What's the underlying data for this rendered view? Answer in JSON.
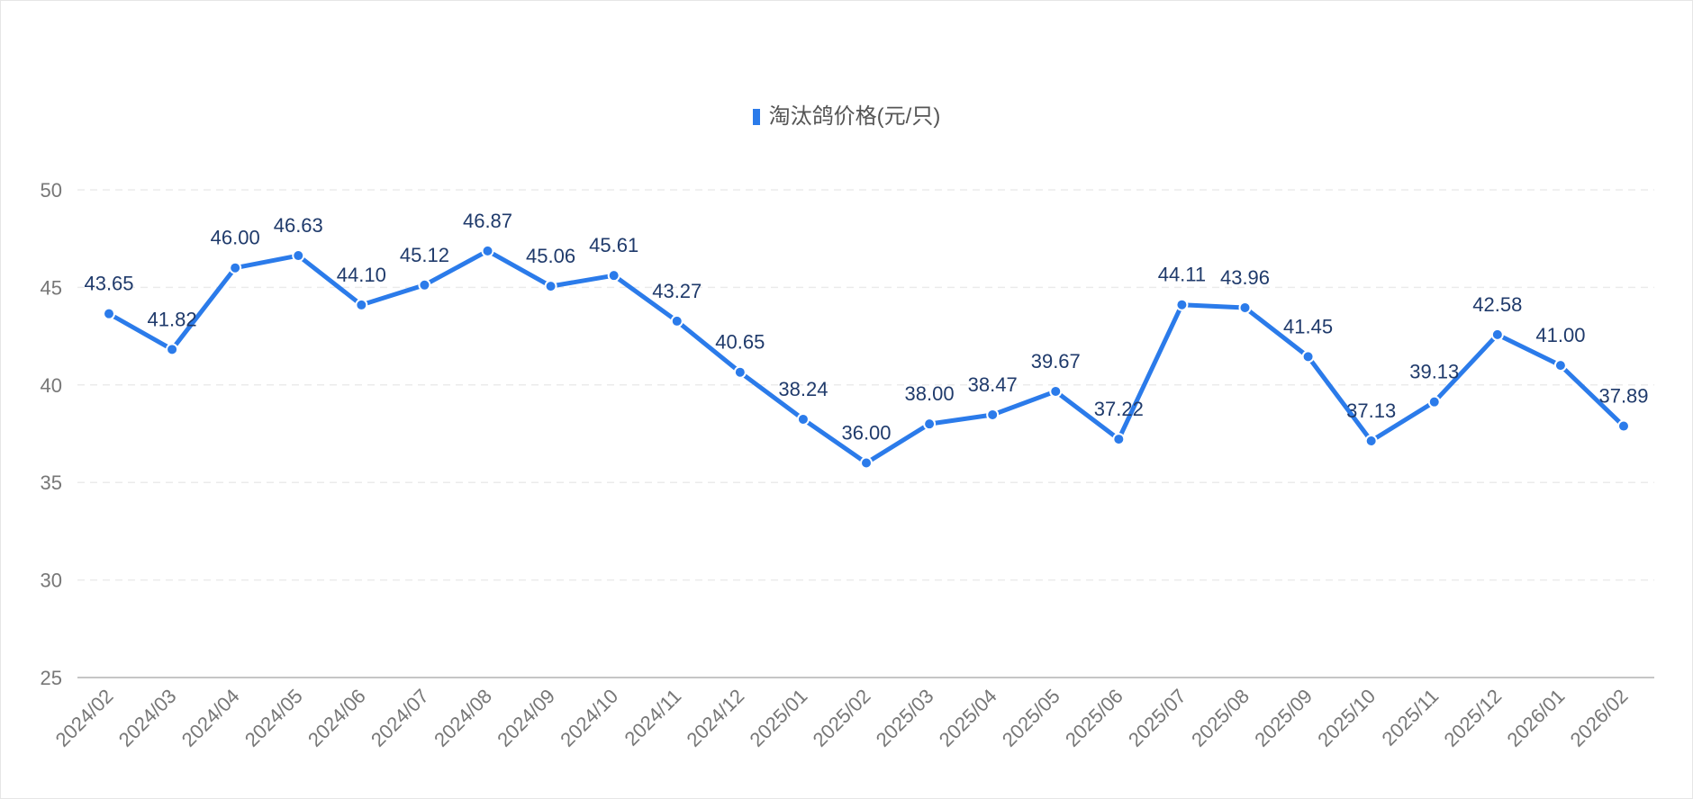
{
  "chart_data": {
    "type": "line",
    "title": "",
    "xlabel": "",
    "ylabel": "",
    "ylim": [
      25,
      50
    ],
    "yticks": [
      25,
      30,
      35,
      40,
      45,
      50
    ],
    "grid": true,
    "legend_position": "top-center",
    "categories": [
      "2024/02",
      "2024/03",
      "2024/04",
      "2024/05",
      "2024/06",
      "2024/07",
      "2024/08",
      "2024/09",
      "2024/10",
      "2024/11",
      "2024/12",
      "2025/01",
      "2025/02",
      "2025/03",
      "2025/04",
      "2025/05",
      "2025/06",
      "2025/07",
      "2025/08",
      "2025/09",
      "2025/10",
      "2025/11",
      "2025/12",
      "2026/01",
      "2026/02"
    ],
    "series": [
      {
        "name": "淘汰鸽价格(元/只)",
        "color": "#2b7bea",
        "values": [
          43.65,
          41.82,
          46.0,
          46.63,
          44.1,
          45.12,
          46.87,
          45.06,
          45.61,
          43.27,
          40.65,
          38.24,
          36.0,
          38.0,
          38.47,
          39.67,
          37.22,
          44.11,
          43.96,
          41.45,
          37.13,
          39.13,
          42.58,
          41.0,
          37.89
        ],
        "labels": [
          "43.65",
          "41.82",
          "46.00",
          "46.63",
          "44.10",
          "45.12",
          "46.87",
          "45.06",
          "45.61",
          "43.27",
          "40.65",
          "38.24",
          "36.00",
          "38.00",
          "38.47",
          "39.67",
          "37.22",
          "44.11",
          "43.96",
          "41.45",
          "37.13",
          "39.13",
          "42.58",
          "41.00",
          "37.89"
        ]
      }
    ]
  }
}
